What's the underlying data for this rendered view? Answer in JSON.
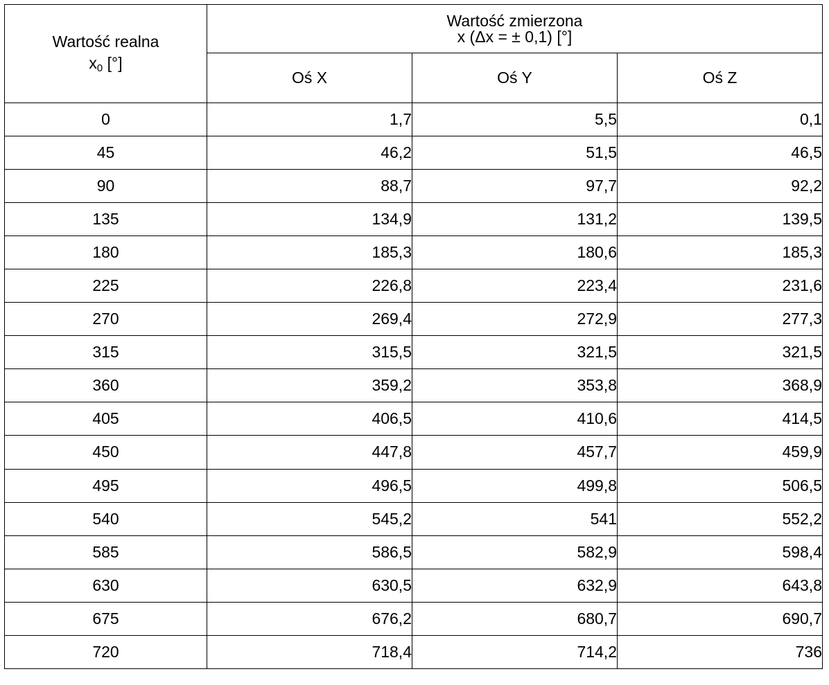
{
  "header": {
    "real_value_label": "Wartość realna",
    "real_value_symbol": "x",
    "real_value_subscript": "0",
    "real_value_unit": "[°]",
    "measured_value_label": "Wartość zmierzona",
    "measured_value_formula": "x (Δx = ± 0,1) [°]",
    "axes": [
      "Oś X",
      "Oś Y",
      "Oś Z"
    ]
  },
  "rows": [
    {
      "real": "0",
      "x": "1,7",
      "y": "5,5",
      "z": "0,1"
    },
    {
      "real": "45",
      "x": "46,2",
      "y": "51,5",
      "z": "46,5"
    },
    {
      "real": "90",
      "x": "88,7",
      "y": "97,7",
      "z": "92,2"
    },
    {
      "real": "135",
      "x": "134,9",
      "y": "131,2",
      "z": "139,5"
    },
    {
      "real": "180",
      "x": "185,3",
      "y": "180,6",
      "z": "185,3"
    },
    {
      "real": "225",
      "x": "226,8",
      "y": "223,4",
      "z": "231,6"
    },
    {
      "real": "270",
      "x": "269,4",
      "y": "272,9",
      "z": "277,3"
    },
    {
      "real": "315",
      "x": "315,5",
      "y": "321,5",
      "z": "321,5"
    },
    {
      "real": "360",
      "x": "359,2",
      "y": "353,8",
      "z": "368,9"
    },
    {
      "real": "405",
      "x": "406,5",
      "y": "410,6",
      "z": "414,5"
    },
    {
      "real": "450",
      "x": "447,8",
      "y": "457,7",
      "z": "459,9"
    },
    {
      "real": "495",
      "x": "496,5",
      "y": "499,8",
      "z": "506,5"
    },
    {
      "real": "540",
      "x": "545,2",
      "y": "541",
      "z": "552,2"
    },
    {
      "real": "585",
      "x": "586,5",
      "y": "582,9",
      "z": "598,4"
    },
    {
      "real": "630",
      "x": "630,5",
      "y": "632,9",
      "z": "643,8"
    },
    {
      "real": "675",
      "x": "676,2",
      "y": "680,7",
      "z": "690,7"
    },
    {
      "real": "720",
      "x": "718,4",
      "y": "714,2",
      "z": "736"
    }
  ]
}
